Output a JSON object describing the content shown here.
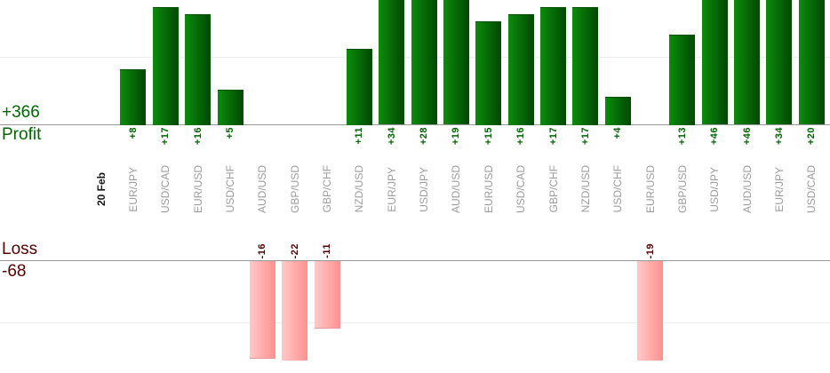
{
  "chart_data": {
    "type": "bar",
    "title": "",
    "categories": [
      "20 Feb",
      "EUR/JPY",
      "USD/CAD",
      "EUR/USD",
      "USD/CHF",
      "AUD/USD",
      "GBP/USD",
      "GBP/CHF",
      "NZD/USD",
      "EUR/JPY",
      "USD/JPY",
      "AUD/USD",
      "EUR/USD",
      "USD/CAD",
      "GBP/CHF",
      "NZD/USD",
      "USD/CHF",
      "EUR/USD",
      "GBP/USD",
      "USD/JPY",
      "AUD/USD",
      "EUR/JPY",
      "USD/CAD"
    ],
    "values": [
      null,
      8,
      17,
      16,
      5,
      -16,
      -22,
      -11,
      11,
      34,
      28,
      19,
      15,
      16,
      17,
      17,
      4,
      -19,
      13,
      46,
      46,
      34,
      20
    ],
    "value_labels": [
      "",
      "+8",
      "+17",
      "+16",
      "+5",
      "-16",
      "-22",
      "-11",
      "+11",
      "+34",
      "+28",
      "+19",
      "+15",
      "+16",
      "+17",
      "+17",
      "+4",
      "-19",
      "+13",
      "+46",
      "+46",
      "+34",
      "+20"
    ],
    "date_columns": [
      0
    ],
    "profit_total": "+366",
    "profit_caption": "Profit",
    "loss_caption": "Loss",
    "loss_total": "-68",
    "xlabel": "",
    "ylabel": "",
    "legend": "none",
    "grid": "faint horizontal gridlines at +10 and -10; tall bars cropped at panel edges"
  },
  "colors": {
    "profit_bar_light": "#0c8c0c",
    "profit_bar_dark": "#014701",
    "loss_bar_light": "#ffc9c9",
    "loss_bar_dark": "#ff9090",
    "profit_text": "#006600",
    "loss_text": "#550000",
    "category_label": "#9c9c9c",
    "date_label": "#1a1a1a",
    "axis_line": "#999999",
    "gridline": "#ededed"
  }
}
